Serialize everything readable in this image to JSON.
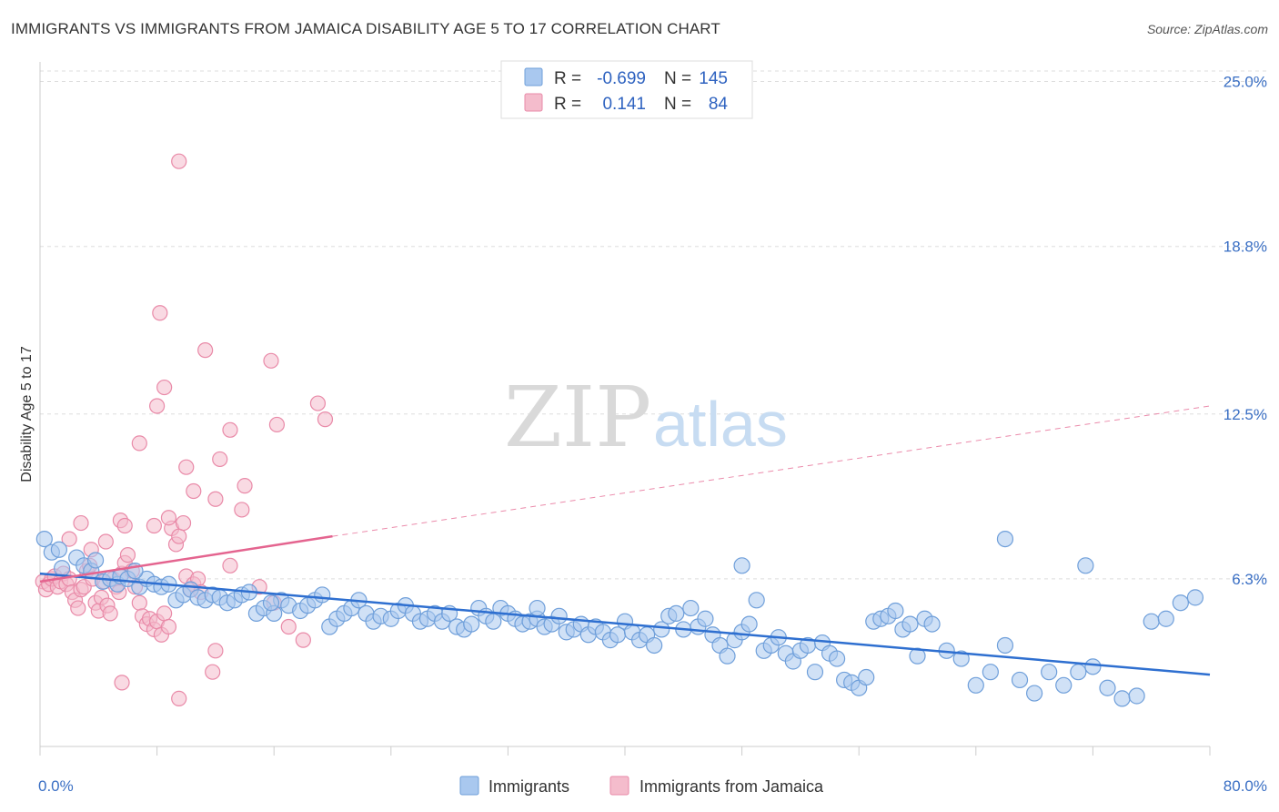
{
  "title": "IMMIGRANTS VS IMMIGRANTS FROM JAMAICA DISABILITY AGE 5 TO 17 CORRELATION CHART",
  "source": "Source: ZipAtlas.com",
  "watermark": {
    "zip": "ZIP",
    "atlas": "atlas"
  },
  "legend": {
    "r_label": "R =",
    "n_label": "N =",
    "rows": [
      {
        "r": "-0.699",
        "n": "145"
      },
      {
        "r": "0.141",
        "n": "84"
      }
    ]
  },
  "colors": {
    "blue_fill": "#a9c8ef",
    "blue_stroke": "#6f9fda",
    "blue_line": "#2e6fd0",
    "pink_fill": "#f4bccc",
    "pink_stroke": "#e98aa8",
    "pink_line": "#e4648f",
    "grid": "#dddddd",
    "axis_text": "#3a6fc4"
  },
  "chart_data": {
    "type": "scatter",
    "title": "IMMIGRANTS VS IMMIGRANTS FROM JAMAICA DISABILITY AGE 5 TO 17 CORRELATION CHART",
    "xlabel": "",
    "ylabel": "Disability Age 5 to 17",
    "xlim": [
      0,
      80
    ],
    "ylim": [
      0,
      25.6
    ],
    "x_tick_labels": [
      "0.0%",
      "80.0%"
    ],
    "y_ticks": [
      6.3,
      12.5,
      18.8,
      25.0
    ],
    "y_tick_labels": [
      "6.3%",
      "12.5%",
      "18.8%",
      "25.0%"
    ],
    "grid": true,
    "legend_position": "top-center",
    "series": [
      {
        "name": "Immigrants",
        "color": "#a9c8ef",
        "trend": {
          "x": [
            0,
            80
          ],
          "y": [
            6.5,
            2.7
          ],
          "dashed_extension": false
        },
        "points": [
          [
            0.3,
            7.8
          ],
          [
            0.8,
            7.3
          ],
          [
            1.3,
            7.4
          ],
          [
            1.5,
            6.7
          ],
          [
            2.5,
            7.1
          ],
          [
            3.0,
            6.8
          ],
          [
            3.5,
            6.6
          ],
          [
            4.3,
            6.2
          ],
          [
            4.8,
            6.3
          ],
          [
            5.3,
            6.1
          ],
          [
            5.5,
            6.4
          ],
          [
            6.0,
            6.3
          ],
          [
            6.8,
            6.0
          ],
          [
            7.3,
            6.3
          ],
          [
            7.8,
            6.1
          ],
          [
            8.3,
            6.0
          ],
          [
            8.8,
            6.1
          ],
          [
            9.3,
            5.5
          ],
          [
            9.8,
            5.7
          ],
          [
            10.3,
            5.9
          ],
          [
            10.8,
            5.6
          ],
          [
            11.3,
            5.5
          ],
          [
            11.8,
            5.7
          ],
          [
            12.3,
            5.6
          ],
          [
            12.8,
            5.4
          ],
          [
            13.3,
            5.5
          ],
          [
            13.8,
            5.7
          ],
          [
            14.3,
            5.8
          ],
          [
            14.8,
            5.0
          ],
          [
            15.3,
            5.2
          ],
          [
            16.0,
            5.0
          ],
          [
            16.5,
            5.5
          ],
          [
            17.0,
            5.3
          ],
          [
            17.8,
            5.1
          ],
          [
            18.3,
            5.3
          ],
          [
            18.8,
            5.5
          ],
          [
            19.3,
            5.7
          ],
          [
            19.8,
            4.5
          ],
          [
            20.3,
            4.8
          ],
          [
            20.8,
            5.0
          ],
          [
            21.3,
            5.2
          ],
          [
            21.8,
            5.5
          ],
          [
            22.3,
            5.0
          ],
          [
            22.8,
            4.7
          ],
          [
            23.3,
            4.9
          ],
          [
            24.0,
            4.8
          ],
          [
            24.5,
            5.1
          ],
          [
            25.0,
            5.3
          ],
          [
            25.5,
            5.0
          ],
          [
            26.0,
            4.7
          ],
          [
            26.5,
            4.8
          ],
          [
            27.0,
            5.0
          ],
          [
            27.5,
            4.7
          ],
          [
            28.0,
            5.0
          ],
          [
            28.5,
            4.5
          ],
          [
            29.0,
            4.4
          ],
          [
            29.5,
            4.6
          ],
          [
            30.0,
            5.2
          ],
          [
            30.5,
            4.9
          ],
          [
            31.0,
            4.7
          ],
          [
            31.5,
            5.2
          ],
          [
            32.0,
            5.0
          ],
          [
            32.5,
            4.8
          ],
          [
            33.0,
            4.6
          ],
          [
            33.5,
            4.7
          ],
          [
            34.0,
            4.8
          ],
          [
            34.5,
            4.5
          ],
          [
            35.0,
            4.6
          ],
          [
            35.5,
            4.9
          ],
          [
            36.0,
            4.3
          ],
          [
            36.5,
            4.4
          ],
          [
            37.0,
            4.6
          ],
          [
            37.5,
            4.2
          ],
          [
            38.0,
            4.5
          ],
          [
            38.5,
            4.3
          ],
          [
            39.0,
            4.0
          ],
          [
            39.5,
            4.2
          ],
          [
            40.0,
            4.7
          ],
          [
            40.5,
            4.3
          ],
          [
            41.0,
            4.0
          ],
          [
            41.5,
            4.2
          ],
          [
            42.0,
            3.8
          ],
          [
            42.5,
            4.4
          ],
          [
            43.0,
            4.9
          ],
          [
            43.5,
            5.0
          ],
          [
            44.0,
            4.4
          ],
          [
            44.5,
            5.2
          ],
          [
            45.0,
            4.5
          ],
          [
            45.5,
            4.8
          ],
          [
            46.0,
            4.2
          ],
          [
            46.5,
            3.8
          ],
          [
            47.0,
            3.4
          ],
          [
            47.5,
            4.0
          ],
          [
            48.0,
            4.3
          ],
          [
            48.5,
            4.6
          ],
          [
            49.0,
            5.5
          ],
          [
            49.5,
            3.6
          ],
          [
            50.0,
            3.8
          ],
          [
            50.5,
            4.1
          ],
          [
            51.0,
            3.5
          ],
          [
            51.5,
            3.2
          ],
          [
            52.0,
            3.6
          ],
          [
            52.5,
            3.8
          ],
          [
            53.0,
            2.8
          ],
          [
            53.5,
            3.9
          ],
          [
            54.0,
            3.5
          ],
          [
            54.5,
            3.3
          ],
          [
            55.0,
            2.5
          ],
          [
            55.5,
            2.4
          ],
          [
            56.0,
            2.2
          ],
          [
            56.5,
            2.6
          ],
          [
            57.0,
            4.7
          ],
          [
            57.5,
            4.8
          ],
          [
            58.0,
            4.9
          ],
          [
            58.5,
            5.1
          ],
          [
            59.0,
            4.4
          ],
          [
            59.5,
            4.6
          ],
          [
            60.0,
            3.4
          ],
          [
            60.5,
            4.8
          ],
          [
            61.0,
            4.6
          ],
          [
            62.0,
            3.6
          ],
          [
            63.0,
            3.3
          ],
          [
            64.0,
            2.3
          ],
          [
            65.0,
            2.8
          ],
          [
            66.0,
            3.8
          ],
          [
            67.0,
            2.5
          ],
          [
            68.0,
            2.0
          ],
          [
            69.0,
            2.8
          ],
          [
            70.0,
            2.3
          ],
          [
            71.0,
            2.8
          ],
          [
            72.0,
            3.0
          ],
          [
            73.0,
            2.2
          ],
          [
            74.0,
            1.8
          ],
          [
            75.0,
            1.9
          ],
          [
            76.0,
            4.7
          ],
          [
            77.0,
            4.8
          ],
          [
            78.0,
            5.4
          ],
          [
            79.0,
            5.6
          ],
          [
            66.0,
            7.8
          ],
          [
            71.5,
            6.8
          ],
          [
            48.0,
            6.8
          ],
          [
            34.0,
            5.2
          ],
          [
            15.8,
            5.4
          ],
          [
            6.5,
            6.6
          ],
          [
            3.8,
            7.0
          ]
        ]
      },
      {
        "name": "Immigrants from Jamaica",
        "color": "#f4bccc",
        "trend": {
          "x": [
            0,
            20,
            80
          ],
          "y": [
            6.2,
            7.9,
            12.8
          ],
          "dashed_extension": true
        },
        "points": [
          [
            0.2,
            6.2
          ],
          [
            0.4,
            5.9
          ],
          [
            0.6,
            6.1
          ],
          [
            0.8,
            6.3
          ],
          [
            1.0,
            6.4
          ],
          [
            1.2,
            6.0
          ],
          [
            1.4,
            6.2
          ],
          [
            1.6,
            6.5
          ],
          [
            1.8,
            6.1
          ],
          [
            2.0,
            6.3
          ],
          [
            2.2,
            5.8
          ],
          [
            2.4,
            5.5
          ],
          [
            2.6,
            5.2
          ],
          [
            2.8,
            5.9
          ],
          [
            3.0,
            6.0
          ],
          [
            3.2,
            6.6
          ],
          [
            3.4,
            6.8
          ],
          [
            3.6,
            6.3
          ],
          [
            3.8,
            5.4
          ],
          [
            4.0,
            5.1
          ],
          [
            4.2,
            5.6
          ],
          [
            4.4,
            6.2
          ],
          [
            4.6,
            5.3
          ],
          [
            4.8,
            5.0
          ],
          [
            5.0,
            6.3
          ],
          [
            5.2,
            6.0
          ],
          [
            5.4,
            5.8
          ],
          [
            5.6,
            6.5
          ],
          [
            5.8,
            6.9
          ],
          [
            6.0,
            7.2
          ],
          [
            6.3,
            6.6
          ],
          [
            6.5,
            6.0
          ],
          [
            6.8,
            5.4
          ],
          [
            7.0,
            4.9
          ],
          [
            7.3,
            4.6
          ],
          [
            7.5,
            4.8
          ],
          [
            7.8,
            4.4
          ],
          [
            8.0,
            4.7
          ],
          [
            8.3,
            4.2
          ],
          [
            8.5,
            5.0
          ],
          [
            8.8,
            4.5
          ],
          [
            9.0,
            8.2
          ],
          [
            9.3,
            7.6
          ],
          [
            9.5,
            7.9
          ],
          [
            9.8,
            8.4
          ],
          [
            10.0,
            6.4
          ],
          [
            10.3,
            5.9
          ],
          [
            10.5,
            6.1
          ],
          [
            10.8,
            6.3
          ],
          [
            11.0,
            5.8
          ],
          [
            5.5,
            8.5
          ],
          [
            7.8,
            8.3
          ],
          [
            8.8,
            8.6
          ],
          [
            10.5,
            9.6
          ],
          [
            12.0,
            9.3
          ],
          [
            8.0,
            12.8
          ],
          [
            6.8,
            11.4
          ],
          [
            12.3,
            10.8
          ],
          [
            13.0,
            11.9
          ],
          [
            10.0,
            10.5
          ],
          [
            8.5,
            13.5
          ],
          [
            8.2,
            16.3
          ],
          [
            9.5,
            22.0
          ],
          [
            11.3,
            14.9
          ],
          [
            16.2,
            12.1
          ],
          [
            19.0,
            12.9
          ],
          [
            19.5,
            12.3
          ],
          [
            15.8,
            14.5
          ],
          [
            14.0,
            9.8
          ],
          [
            13.8,
            8.9
          ],
          [
            2.8,
            8.4
          ],
          [
            2.0,
            7.8
          ],
          [
            3.5,
            7.4
          ],
          [
            4.5,
            7.7
          ],
          [
            5.8,
            8.3
          ],
          [
            13.0,
            6.8
          ],
          [
            15.0,
            6.0
          ],
          [
            16.0,
            5.4
          ],
          [
            17.0,
            4.5
          ],
          [
            18.0,
            4.0
          ],
          [
            12.0,
            3.6
          ],
          [
            9.5,
            1.8
          ],
          [
            11.8,
            2.8
          ],
          [
            5.6,
            2.4
          ]
        ]
      }
    ]
  },
  "bottom_legend": [
    {
      "label": "Immigrants"
    },
    {
      "label": "Immigrants from Jamaica"
    }
  ]
}
